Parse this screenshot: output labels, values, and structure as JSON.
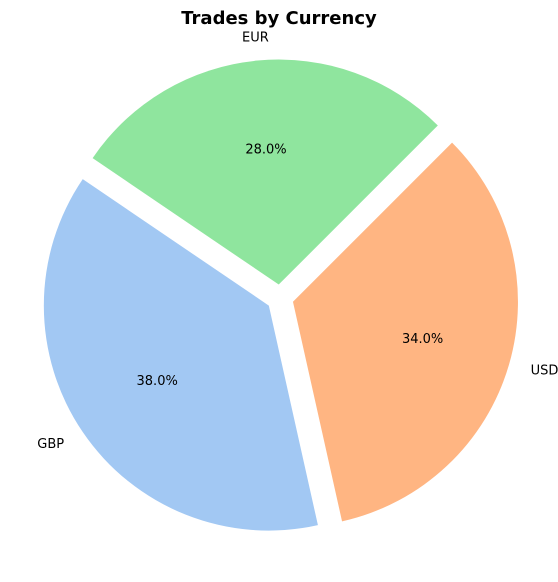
{
  "chart_data": {
    "type": "pie",
    "title": "Trades by Currency",
    "categories": [
      "EUR",
      "GBP",
      "USD"
    ],
    "values": [
      28.0,
      38.0,
      34.0
    ],
    "labels_pct": [
      "28.0%",
      "38.0%",
      "34.0%"
    ],
    "colors": [
      "#8fe59e",
      "#a2c8f3",
      "#ffb582"
    ],
    "start_angle_deg": 45,
    "direction": "counterclockwise",
    "exploded": true
  }
}
